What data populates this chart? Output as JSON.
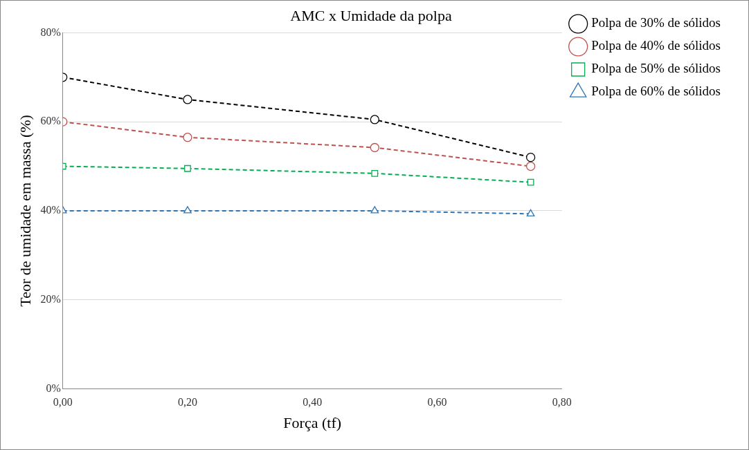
{
  "chart_data": {
    "type": "line",
    "title": "AMC x Umidade da polpa",
    "xlabel": "Força (tf)",
    "ylabel": "Teor de umidade em massa (%)",
    "x": [
      0,
      0.2,
      0.5,
      0.75
    ],
    "series": [
      {
        "name": "Polpa de 30% de sólidos",
        "color": "#000000",
        "marker": "circle",
        "values": [
          70,
          65,
          60.5,
          52
        ]
      },
      {
        "name": "Polpa de 40% de sólidos",
        "color": "#c0504d",
        "marker": "circle",
        "values": [
          60,
          56.5,
          54.2,
          50
        ]
      },
      {
        "name": "Polpa de 50% de sólidos",
        "color": "#00b050",
        "marker": "square",
        "values": [
          50,
          49.5,
          48.4,
          46.4
        ]
      },
      {
        "name": "Polpa de 60% de sólidos",
        "color": "#2e75b6",
        "marker": "triangle",
        "values": [
          40,
          40,
          40,
          39.3
        ]
      }
    ],
    "xlim": [
      0,
      0.8
    ],
    "xticks": [
      {
        "value": 0,
        "label": "0,00"
      },
      {
        "value": 0.2,
        "label": "0,20"
      },
      {
        "value": 0.4,
        "label": "0,40"
      },
      {
        "value": 0.6,
        "label": "0,60"
      },
      {
        "value": 0.8,
        "label": "0,80"
      }
    ],
    "ylim": [
      0,
      80
    ],
    "yticks": [
      {
        "value": 0,
        "label": "0%"
      },
      {
        "value": 20,
        "label": "20%"
      },
      {
        "value": 40,
        "label": "40%"
      },
      {
        "value": 60,
        "label": "60%"
      },
      {
        "value": 80,
        "label": "80%"
      }
    ],
    "grid": "y",
    "legend": "right",
    "line_style": "dashed"
  }
}
